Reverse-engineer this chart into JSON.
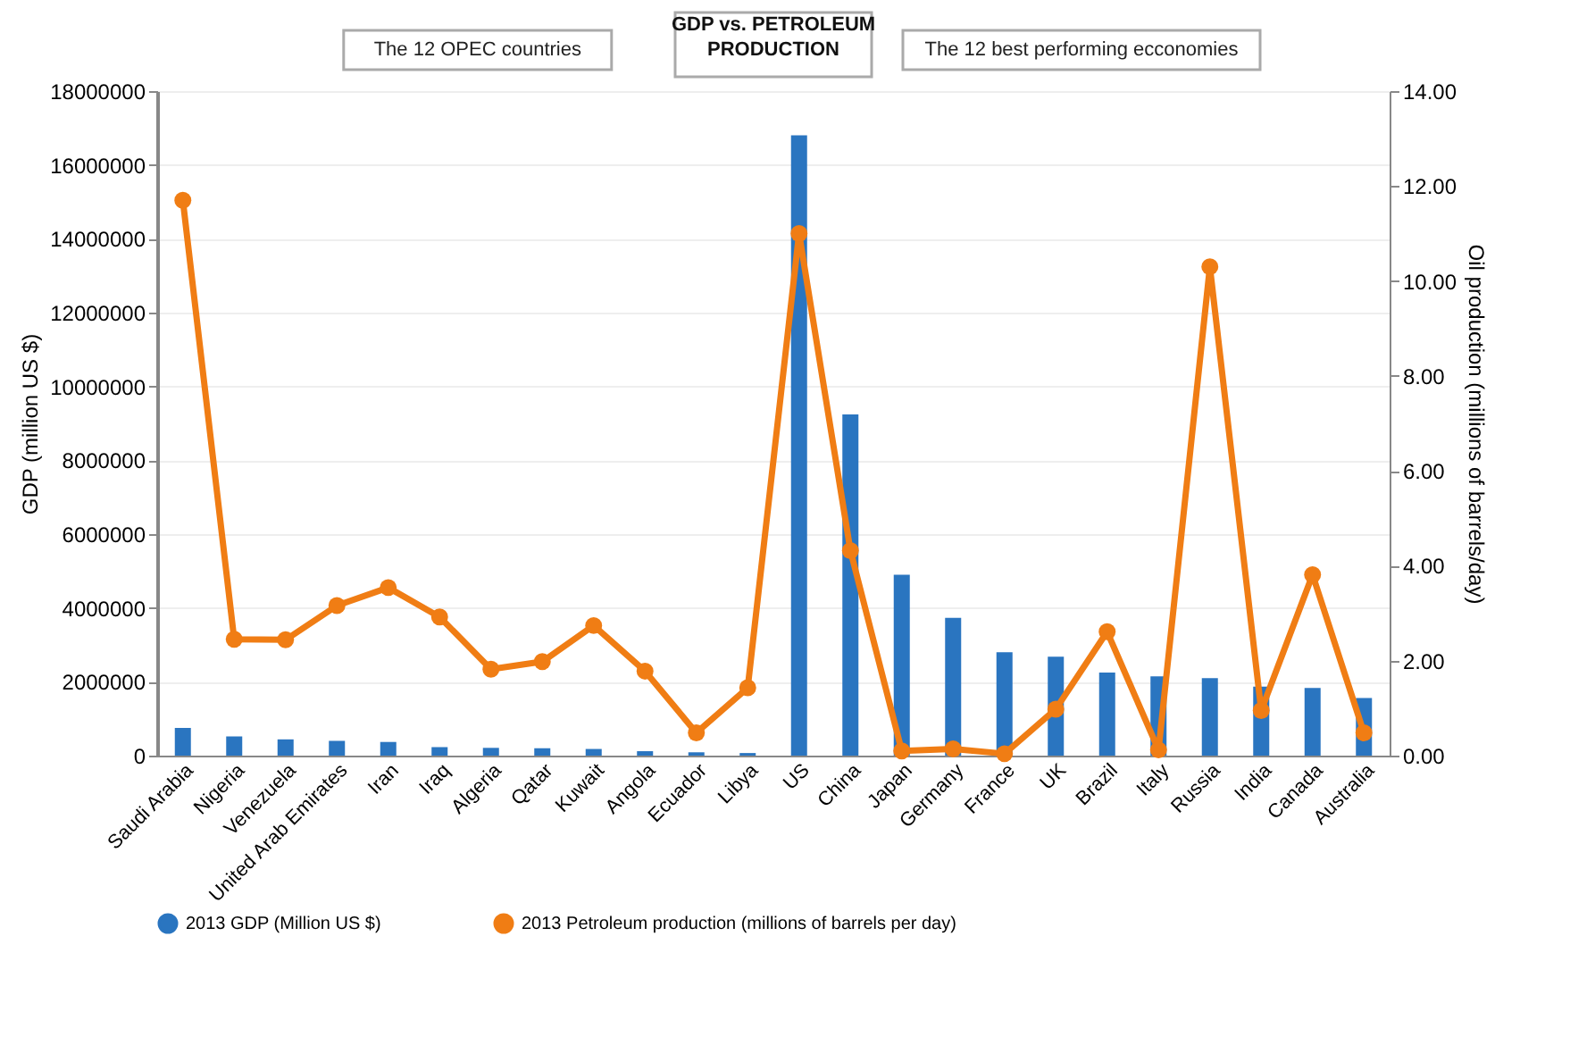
{
  "chart_data": {
    "type": "bar",
    "title": [
      "GDP vs. PETROLEUM",
      "PRODUCTION"
    ],
    "ylabel": "GDP (million US $)",
    "y2label": "Oil production (millions of barrels/day)",
    "categories": [
      "Saudi Arabia",
      "Nigeria",
      "Venezuela",
      "United Arab Emirates",
      "Iran",
      "Iraq",
      "Algeria",
      "Qatar",
      "Kuwait",
      "Angola",
      "Ecuador",
      "Libya",
      "US",
      "China",
      "Japan",
      "Germany",
      "France",
      "UK",
      "Brazil",
      "Italy",
      "Russia",
      "India",
      "Canada",
      "Australia"
    ],
    "series": [
      {
        "name": "2013 GDP (Million US $)",
        "axis": "y",
        "color": "#2a75c0",
        "values": [
          750000,
          520000,
          440000,
          400000,
          370000,
          230000,
          210000,
          200000,
          180000,
          120000,
          90000,
          70000,
          16800000,
          9240000,
          4900000,
          3730000,
          2800000,
          2680000,
          2250000,
          2150000,
          2100000,
          1870000,
          1830000,
          1560000
        ]
      },
      {
        "name": "2013 Petroleum production (millions of barrels per day)",
        "type": "line",
        "axis": "y2",
        "color": "#f07d14",
        "marker": "circle",
        "values": [
          11.7,
          2.45,
          2.44,
          3.16,
          3.54,
          2.92,
          1.82,
          1.98,
          2.74,
          1.78,
          0.48,
          1.43,
          11.0,
          4.32,
          0.1,
          0.14,
          0.04,
          0.98,
          2.61,
          0.12,
          10.3,
          0.95,
          3.81,
          0.48
        ]
      }
    ],
    "ylim": [
      0,
      18000000
    ],
    "yticks": [
      0,
      2000000,
      4000000,
      6000000,
      8000000,
      10000000,
      12000000,
      14000000,
      16000000,
      18000000
    ],
    "y2lim": [
      0,
      14
    ],
    "y2ticks": [
      {
        "value": 0,
        "label": "0.00"
      },
      {
        "value": 2,
        "label": "2.00"
      },
      {
        "value": 4,
        "label": "4.00"
      },
      {
        "value": 6,
        "label": "6.00"
      },
      {
        "value": 8,
        "label": "8.00"
      },
      {
        "value": 10,
        "label": "10.00"
      },
      {
        "value": 12,
        "label": "12.00"
      },
      {
        "value": 14,
        "label": "14.00"
      }
    ],
    "annotations": [
      "The 12 OPEC countries",
      "The 12 best performing ecconomies"
    ],
    "grid": "y",
    "legend": "bottom"
  }
}
